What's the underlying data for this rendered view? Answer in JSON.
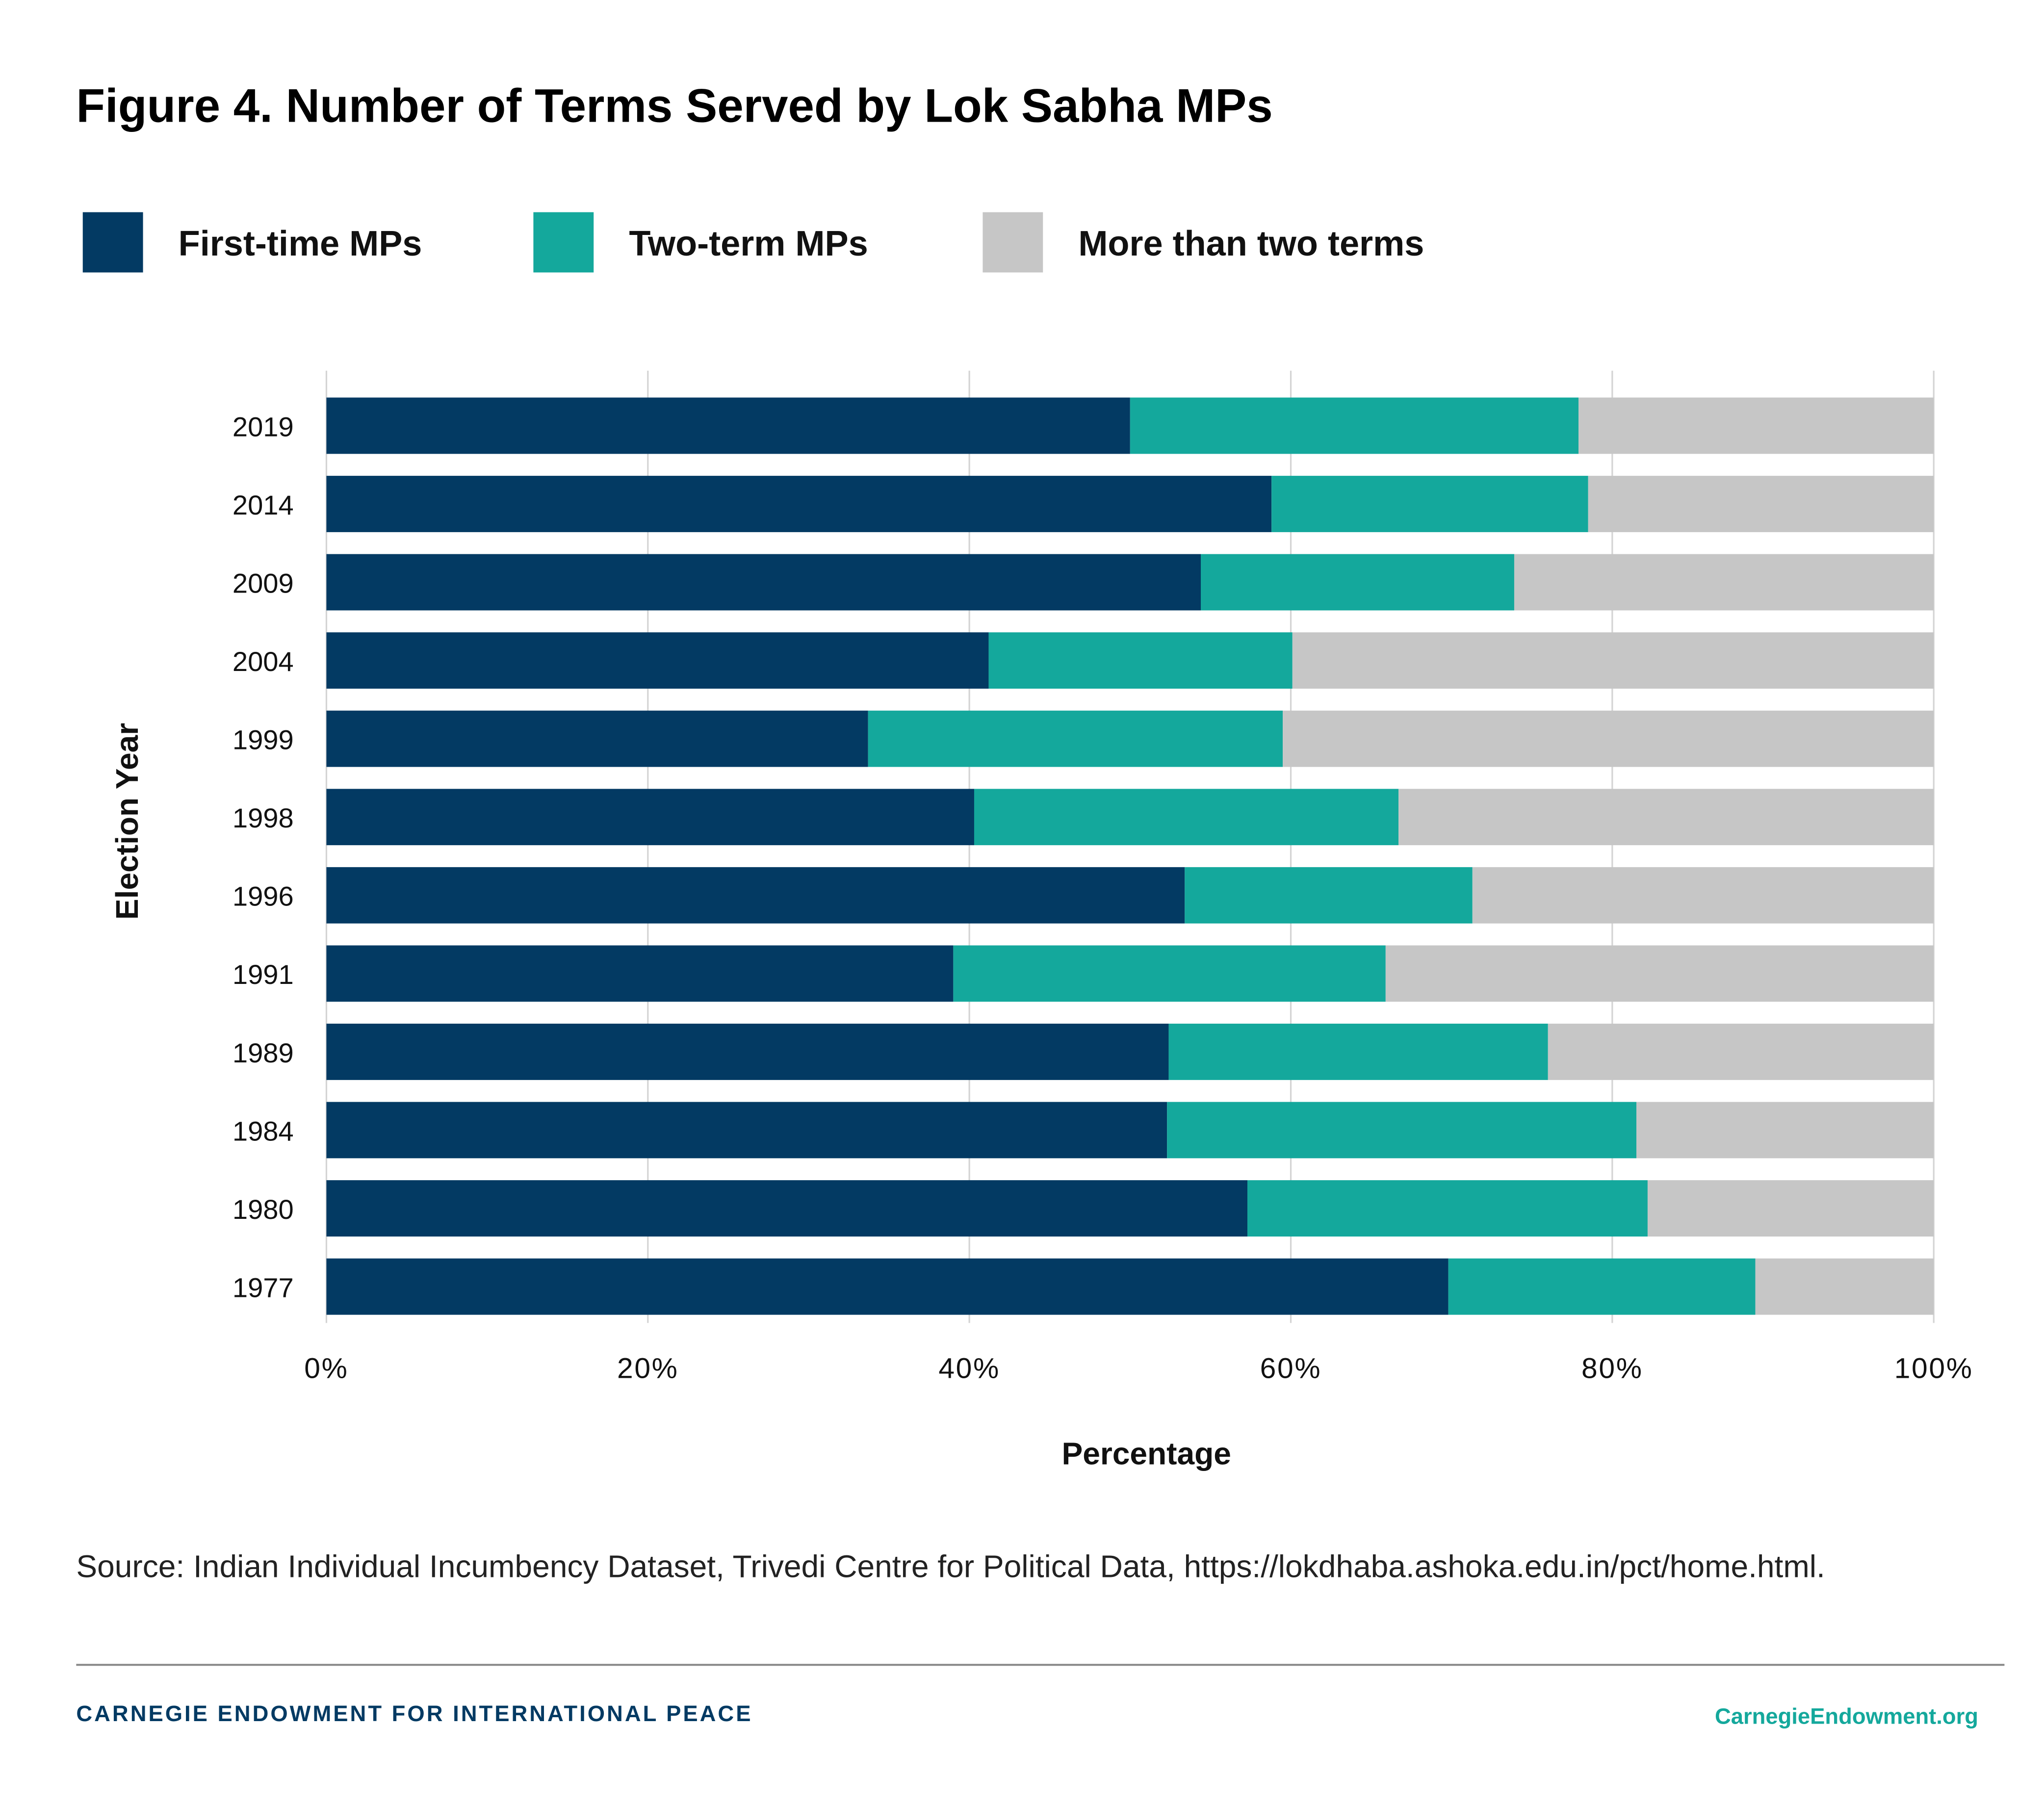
{
  "title": "Figure 4. Number of Terms Served by Lok Sabha MPs",
  "source": "Source: Indian Individual Incumbency Dataset, Trivedi Centre for Political Data, https://lokdhaba.ashoka.edu.in/pct/home.html.",
  "footer": {
    "organization": "CARNEGIE ENDOWMENT FOR INTERNATIONAL PEACE",
    "website": "CarnegieEndowment.org"
  },
  "chart_data": {
    "type": "bar",
    "orientation": "horizontal",
    "stacked": true,
    "title": "Figure 4. Number of Terms Served by Lok Sabha MPs",
    "xlabel": "Percentage",
    "ylabel": "Election Year",
    "xlim": [
      0,
      100
    ],
    "x_ticks": [
      "0%",
      "20%",
      "40%",
      "60%",
      "80%",
      "100%"
    ],
    "grid": "vertical",
    "legend_position": "top",
    "categories": [
      "2019",
      "2014",
      "2009",
      "2004",
      "1999",
      "1998",
      "1996",
      "1991",
      "1989",
      "1984",
      "1980",
      "1977"
    ],
    "series": [
      {
        "name": "First-time MPs",
        "color": "#033a63",
        "values": [
          50.0,
          58.8,
          54.4,
          41.2,
          33.7,
          40.3,
          53.4,
          39.0,
          52.4,
          52.3,
          57.3,
          69.8
        ]
      },
      {
        "name": "Two-term MPs",
        "color": "#14a89c",
        "values": [
          27.9,
          19.7,
          19.5,
          18.9,
          25.8,
          26.4,
          17.9,
          26.9,
          23.6,
          29.2,
          24.9,
          19.1
        ]
      },
      {
        "name": "More than two terms",
        "color": "#c6c6c6",
        "values": [
          22.1,
          21.5,
          26.1,
          39.9,
          40.5,
          33.3,
          28.7,
          34.1,
          24.0,
          18.5,
          17.8,
          11.1
        ]
      }
    ]
  }
}
